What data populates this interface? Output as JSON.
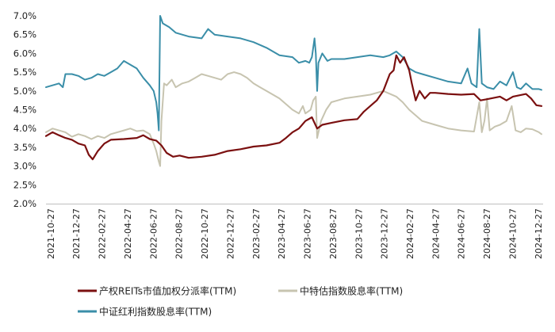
{
  "chart_data": {
    "type": "line",
    "title": "",
    "xlabel": "",
    "ylabel": "",
    "ylim": [
      0.02,
      0.07
    ],
    "y_tick_values": [
      0.02,
      0.025,
      0.03,
      0.035,
      0.04,
      0.045,
      0.05,
      0.055,
      0.06,
      0.065,
      0.07
    ],
    "y_tick_labels": [
      "2.0%",
      "2.5%",
      "3.0%",
      "3.5%",
      "4.0%",
      "4.5%",
      "5.0%",
      "5.5%",
      "6.0%",
      "6.5%",
      "7.0%"
    ],
    "x_tick_labels": [
      "2021-10-27",
      "2021-12-27",
      "2022-02-27",
      "2022-04-27",
      "2022-06-27",
      "2022-08-27",
      "2022-10-27",
      "2022-12-27",
      "2023-02-27",
      "2023-04-27",
      "2023-06-27",
      "2023-08-27",
      "2023-10-27",
      "2023-12-27",
      "2024-02-27",
      "2024-04-27",
      "2024-06-27",
      "2024-08-27",
      "2024-10-27",
      "2024-12-27"
    ],
    "x_domain": [
      0,
      38.2
    ],
    "grid": false,
    "legend_position": "bottom",
    "series": [
      {
        "name": "产权REITs市值加权分派率(TTM)",
        "color": "#7b1010",
        "points": [
          [
            0,
            0.038
          ],
          [
            0.5,
            0.039
          ],
          [
            1,
            0.0382
          ],
          [
            1.5,
            0.0375
          ],
          [
            2,
            0.037
          ],
          [
            2.5,
            0.036
          ],
          [
            3,
            0.0355
          ],
          [
            3.3,
            0.033
          ],
          [
            3.6,
            0.0318
          ],
          [
            4,
            0.034
          ],
          [
            4.5,
            0.036
          ],
          [
            5,
            0.037
          ],
          [
            6,
            0.0372
          ],
          [
            7,
            0.0375
          ],
          [
            7.5,
            0.0382
          ],
          [
            8,
            0.0372
          ],
          [
            8.5,
            0.0368
          ],
          [
            8.9,
            0.0355
          ],
          [
            9.3,
            0.0335
          ],
          [
            9.8,
            0.0325
          ],
          [
            10.3,
            0.0328
          ],
          [
            11,
            0.0322
          ],
          [
            12,
            0.0325
          ],
          [
            13,
            0.033
          ],
          [
            14,
            0.034
          ],
          [
            15,
            0.0345
          ],
          [
            16,
            0.0352
          ],
          [
            17,
            0.0355
          ],
          [
            18,
            0.0362
          ],
          [
            18.5,
            0.0375
          ],
          [
            19,
            0.039
          ],
          [
            19.5,
            0.04
          ],
          [
            20,
            0.042
          ],
          [
            20.5,
            0.043
          ],
          [
            20.9,
            0.04
          ],
          [
            21.3,
            0.041
          ],
          [
            22,
            0.0415
          ],
          [
            23,
            0.0422
          ],
          [
            24,
            0.0425
          ],
          [
            24.5,
            0.0445
          ],
          [
            25,
            0.046
          ],
          [
            25.5,
            0.0475
          ],
          [
            26,
            0.05
          ],
          [
            26.5,
            0.0545
          ],
          [
            26.8,
            0.0555
          ],
          [
            27,
            0.0595
          ],
          [
            27.3,
            0.0575
          ],
          [
            27.6,
            0.059
          ],
          [
            28,
            0.0555
          ],
          [
            28.2,
            0.052
          ],
          [
            28.5,
            0.0475
          ],
          [
            28.8,
            0.05
          ],
          [
            29.2,
            0.048
          ],
          [
            29.6,
            0.0495
          ],
          [
            30,
            0.0495
          ],
          [
            31,
            0.0492
          ],
          [
            32,
            0.049
          ],
          [
            33,
            0.0492
          ],
          [
            33.5,
            0.0475
          ],
          [
            34,
            0.0478
          ],
          [
            35,
            0.0485
          ],
          [
            35.5,
            0.0475
          ],
          [
            36,
            0.0485
          ],
          [
            37,
            0.0492
          ],
          [
            37.4,
            0.048
          ],
          [
            37.8,
            0.0462
          ],
          [
            38.2,
            0.046
          ]
        ]
      },
      {
        "name": "中特估指数股息率(TTM)",
        "color": "#c7c4b0",
        "points": [
          [
            0,
            0.039
          ],
          [
            0.5,
            0.04
          ],
          [
            1,
            0.0395
          ],
          [
            1.5,
            0.039
          ],
          [
            2,
            0.0378
          ],
          [
            2.5,
            0.0385
          ],
          [
            3,
            0.038
          ],
          [
            3.5,
            0.0372
          ],
          [
            4,
            0.038
          ],
          [
            4.5,
            0.0375
          ],
          [
            5,
            0.0385
          ],
          [
            5.5,
            0.039
          ],
          [
            6,
            0.0395
          ],
          [
            6.5,
            0.04
          ],
          [
            7,
            0.0393
          ],
          [
            7.5,
            0.0395
          ],
          [
            8,
            0.0385
          ],
          [
            8.3,
            0.036
          ],
          [
            8.5,
            0.034
          ],
          [
            8.7,
            0.0312
          ],
          [
            8.8,
            0.03
          ],
          [
            8.9,
            0.042
          ],
          [
            9.1,
            0.052
          ],
          [
            9.3,
            0.0515
          ],
          [
            9.7,
            0.053
          ],
          [
            10,
            0.051
          ],
          [
            10.5,
            0.052
          ],
          [
            11,
            0.0525
          ],
          [
            11.5,
            0.0535
          ],
          [
            12,
            0.0545
          ],
          [
            12.5,
            0.054
          ],
          [
            13,
            0.0535
          ],
          [
            13.5,
            0.053
          ],
          [
            14,
            0.0545
          ],
          [
            14.5,
            0.055
          ],
          [
            15,
            0.0545
          ],
          [
            15.5,
            0.0535
          ],
          [
            16,
            0.052
          ],
          [
            16.5,
            0.051
          ],
          [
            17,
            0.05
          ],
          [
            17.5,
            0.049
          ],
          [
            18,
            0.048
          ],
          [
            18.5,
            0.0465
          ],
          [
            19,
            0.045
          ],
          [
            19.5,
            0.044
          ],
          [
            19.8,
            0.046
          ],
          [
            20,
            0.044
          ],
          [
            20.4,
            0.045
          ],
          [
            20.6,
            0.0475
          ],
          [
            20.8,
            0.0485
          ],
          [
            20.9,
            0.0375
          ],
          [
            21.2,
            0.042
          ],
          [
            21.6,
            0.045
          ],
          [
            22,
            0.047
          ],
          [
            23,
            0.048
          ],
          [
            24,
            0.0485
          ],
          [
            25,
            0.049
          ],
          [
            26,
            0.05
          ],
          [
            27,
            0.0485
          ],
          [
            27.5,
            0.047
          ],
          [
            28,
            0.045
          ],
          [
            29,
            0.042
          ],
          [
            30,
            0.041
          ],
          [
            31,
            0.04
          ],
          [
            32,
            0.0395
          ],
          [
            33,
            0.0392
          ],
          [
            33.4,
            0.047
          ],
          [
            33.6,
            0.039
          ],
          [
            33.8,
            0.042
          ],
          [
            34,
            0.048
          ],
          [
            34.2,
            0.0395
          ],
          [
            34.6,
            0.0405
          ],
          [
            35,
            0.041
          ],
          [
            35.5,
            0.042
          ],
          [
            35.9,
            0.046
          ],
          [
            36.2,
            0.0395
          ],
          [
            36.6,
            0.039
          ],
          [
            37,
            0.04
          ],
          [
            37.5,
            0.0398
          ],
          [
            38,
            0.039
          ],
          [
            38.2,
            0.0385
          ]
        ]
      },
      {
        "name": "中证红利指数股息率(TTM)",
        "color": "#3a8ea8",
        "points": [
          [
            0,
            0.051
          ],
          [
            0.5,
            0.0515
          ],
          [
            1,
            0.052
          ],
          [
            1.3,
            0.051
          ],
          [
            1.5,
            0.0545
          ],
          [
            2,
            0.0545
          ],
          [
            2.5,
            0.054
          ],
          [
            3,
            0.053
          ],
          [
            3.5,
            0.0535
          ],
          [
            4,
            0.0545
          ],
          [
            4.5,
            0.054
          ],
          [
            5,
            0.055
          ],
          [
            5.5,
            0.056
          ],
          [
            6,
            0.058
          ],
          [
            6.5,
            0.057
          ],
          [
            7,
            0.056
          ],
          [
            7.5,
            0.0535
          ],
          [
            8,
            0.0515
          ],
          [
            8.3,
            0.05
          ],
          [
            8.5,
            0.047
          ],
          [
            8.6,
            0.044
          ],
          [
            8.7,
            0.0395
          ],
          [
            8.8,
            0.07
          ],
          [
            9,
            0.068
          ],
          [
            9.5,
            0.067
          ],
          [
            10,
            0.0655
          ],
          [
            11,
            0.0645
          ],
          [
            12,
            0.064
          ],
          [
            12.5,
            0.0665
          ],
          [
            13,
            0.065
          ],
          [
            14,
            0.0645
          ],
          [
            15,
            0.064
          ],
          [
            16,
            0.063
          ],
          [
            17,
            0.0615
          ],
          [
            18,
            0.0595
          ],
          [
            19,
            0.059
          ],
          [
            19.5,
            0.0575
          ],
          [
            20,
            0.058
          ],
          [
            20.3,
            0.0575
          ],
          [
            20.5,
            0.059
          ],
          [
            20.7,
            0.064
          ],
          [
            20.8,
            0.06
          ],
          [
            20.9,
            0.05
          ],
          [
            21,
            0.0575
          ],
          [
            21.3,
            0.06
          ],
          [
            21.7,
            0.058
          ],
          [
            22,
            0.0585
          ],
          [
            23,
            0.0585
          ],
          [
            24,
            0.059
          ],
          [
            25,
            0.0595
          ],
          [
            26,
            0.059
          ],
          [
            26.5,
            0.0595
          ],
          [
            27,
            0.0605
          ],
          [
            27.5,
            0.059
          ],
          [
            28,
            0.056
          ],
          [
            28.5,
            0.055
          ],
          [
            29,
            0.0545
          ],
          [
            30,
            0.0535
          ],
          [
            31,
            0.0525
          ],
          [
            32,
            0.052
          ],
          [
            32.5,
            0.056
          ],
          [
            32.8,
            0.052
          ],
          [
            33.2,
            0.051
          ],
          [
            33.4,
            0.0665
          ],
          [
            33.6,
            0.052
          ],
          [
            34,
            0.051
          ],
          [
            34.5,
            0.0505
          ],
          [
            35,
            0.0525
          ],
          [
            35.5,
            0.0515
          ],
          [
            36,
            0.055
          ],
          [
            36.3,
            0.051
          ],
          [
            36.6,
            0.0505
          ],
          [
            37,
            0.052
          ],
          [
            37.5,
            0.0505
          ],
          [
            38,
            0.0505
          ],
          [
            38.2,
            0.0503
          ]
        ]
      }
    ]
  }
}
